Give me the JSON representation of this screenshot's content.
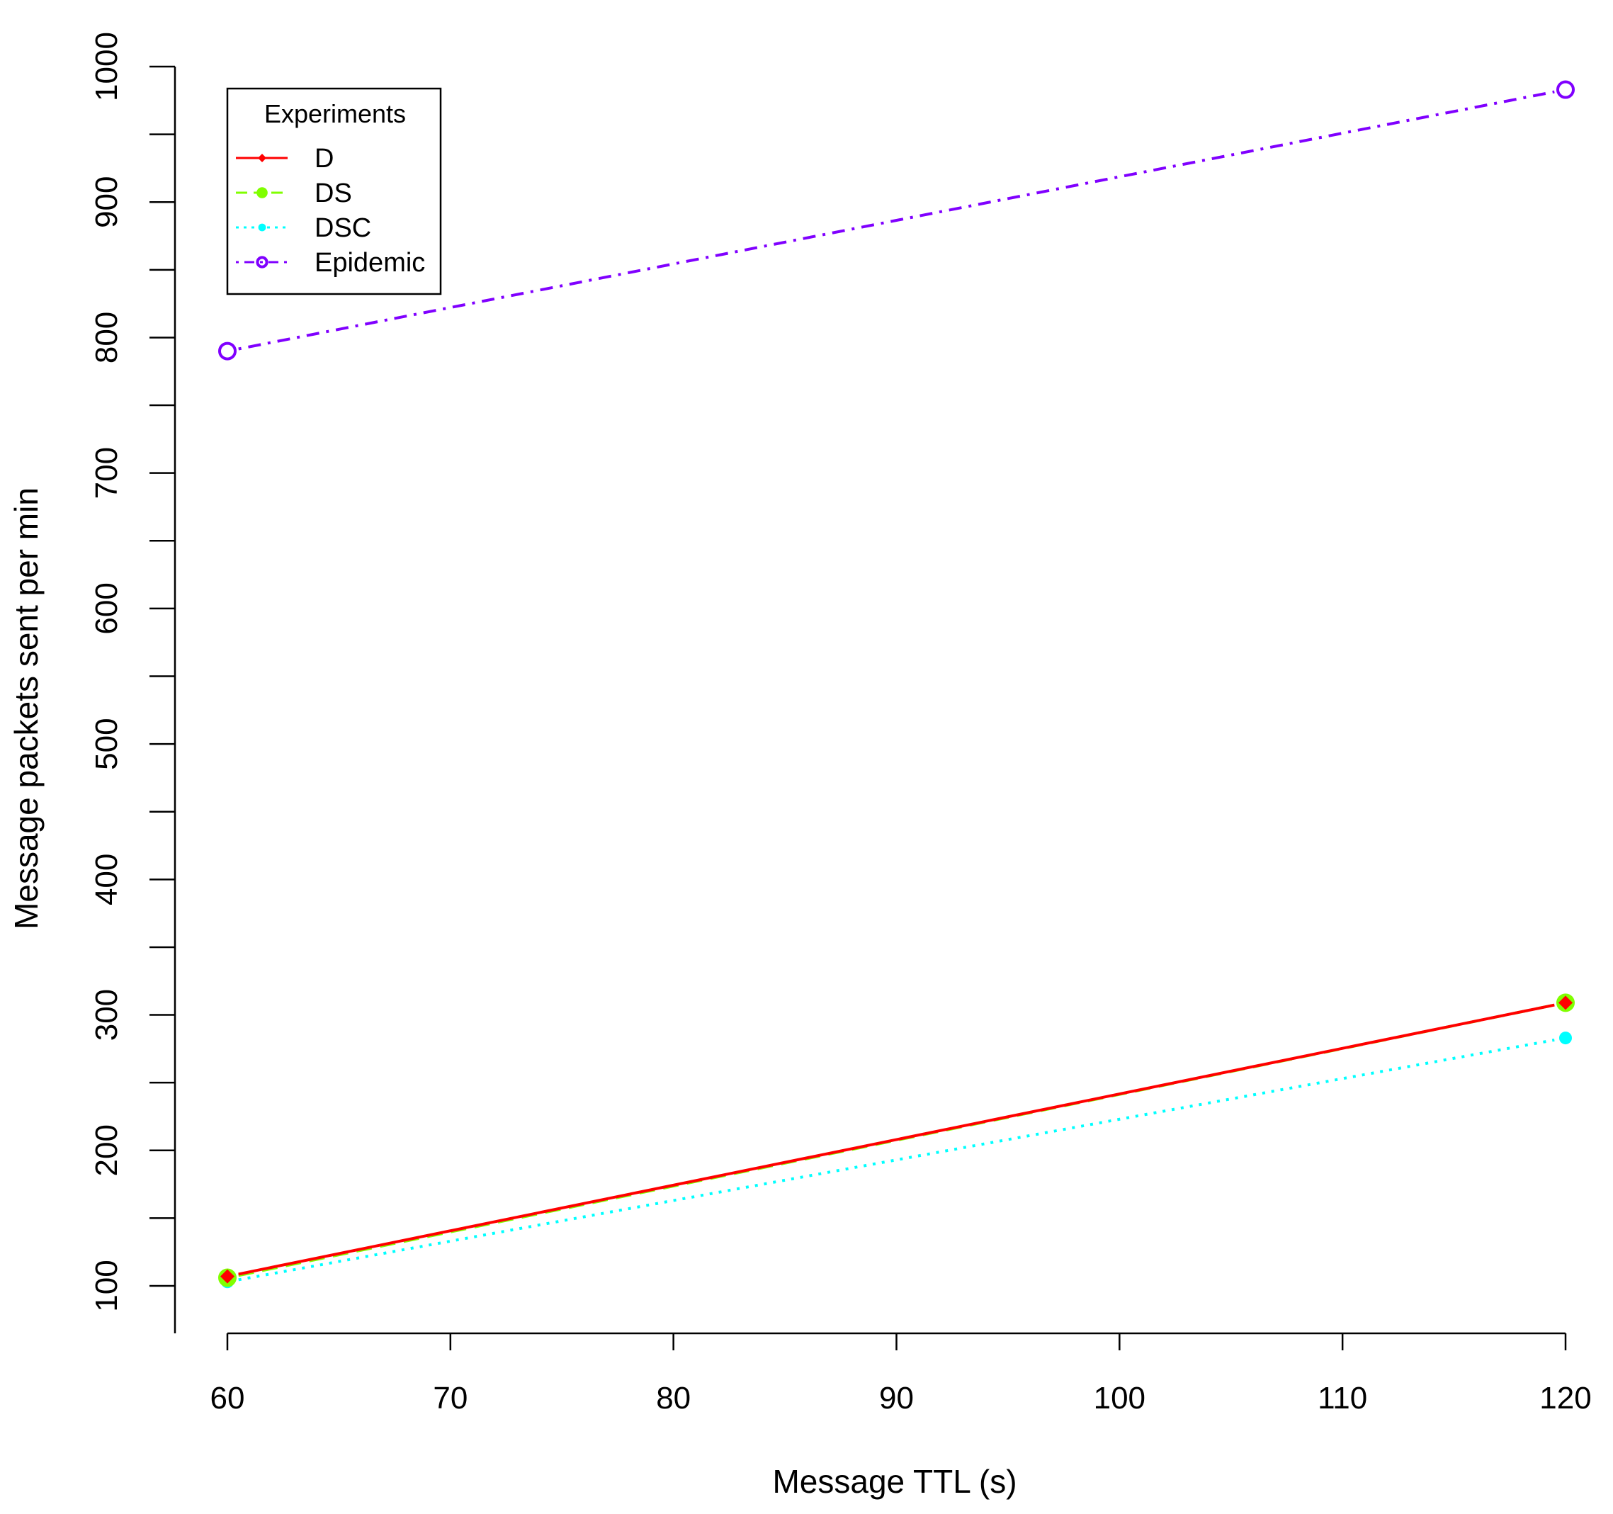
{
  "chart_data": {
    "type": "line",
    "title": "",
    "xlabel": "Message TTL (s)",
    "ylabel": "Message packets sent per min",
    "x": [
      60,
      120
    ],
    "xlim": [
      60,
      120
    ],
    "ylim": [
      100,
      1000
    ],
    "xticks": [
      60,
      70,
      80,
      90,
      100,
      110,
      120
    ],
    "yticks": [
      100,
      200,
      300,
      400,
      500,
      600,
      700,
      800,
      900,
      1000
    ],
    "grid": false,
    "legend_position": "top-left",
    "legend_title": "Experiments",
    "series": [
      {
        "name": "D",
        "values": [
          107,
          309
        ],
        "color": "#ff0000",
        "line_style": "solid",
        "marker": "filled-diamond"
      },
      {
        "name": "DS",
        "values": [
          106,
          309
        ],
        "color": "#80ff00",
        "line_style": "dashed",
        "marker": "filled-circle-large"
      },
      {
        "name": "DSC",
        "values": [
          103,
          283
        ],
        "color": "#00ffff",
        "line_style": "dotted",
        "marker": "filled-circle"
      },
      {
        "name": "Epidemic",
        "values": [
          790,
          983
        ],
        "color": "#8000ff",
        "line_style": "dashdot",
        "marker": "open-circle"
      }
    ]
  }
}
